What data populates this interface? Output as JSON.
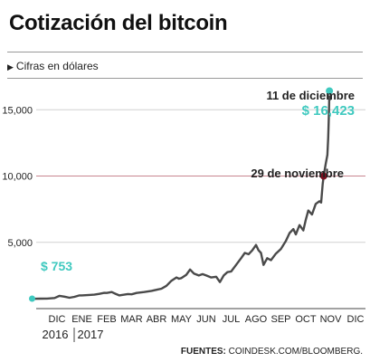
{
  "header": {
    "title": "Cotización del bitcoin",
    "subtitle": "Cifras en dólares",
    "source_label": "FUENTES:",
    "source_text": "COINDESK.COM/BLOOMBERG."
  },
  "colors": {
    "line": "#4a4a4a",
    "accent_teal": "#3fc9bf",
    "marker_red": "#7a1020",
    "ref_line": "#c9868f",
    "grid": "#d0d0d0"
  },
  "chart_data": {
    "type": "line",
    "title": "Cotización del bitcoin",
    "ylabel": "Cifras en dólares",
    "ylim": [
      0,
      17000
    ],
    "yticks": [
      5000,
      10000,
      15000
    ],
    "ytick_labels": [
      "5,000",
      "10,000",
      "15,000"
    ],
    "reference_lines": [
      10000
    ],
    "months": [
      "DIC",
      "ENE",
      "FEB",
      "MAR",
      "ABR",
      "MAY",
      "JUN",
      "JUL",
      "AGO",
      "SEP",
      "OCT",
      "NOV",
      "DIC"
    ],
    "years": [
      "2016",
      "2017"
    ],
    "series": [
      {
        "values": [
          [
            -1.0,
            740
          ],
          [
            -0.7,
            750
          ],
          [
            -0.4,
            760
          ],
          [
            -0.1,
            800
          ],
          [
            0.1,
            960
          ],
          [
            0.3,
            900
          ],
          [
            0.5,
            820
          ],
          [
            0.7,
            890
          ],
          [
            0.9,
            1000
          ],
          [
            1.0,
            1000
          ],
          [
            1.3,
            1030
          ],
          [
            1.5,
            1050
          ],
          [
            1.7,
            1110
          ],
          [
            1.9,
            1190
          ],
          [
            2.0,
            1180
          ],
          [
            2.2,
            1250
          ],
          [
            2.35,
            1120
          ],
          [
            2.5,
            1000
          ],
          [
            2.7,
            1050
          ],
          [
            2.85,
            1100
          ],
          [
            3.0,
            1080
          ],
          [
            3.2,
            1180
          ],
          [
            3.5,
            1250
          ],
          [
            3.8,
            1340
          ],
          [
            4.0,
            1420
          ],
          [
            4.2,
            1500
          ],
          [
            4.4,
            1720
          ],
          [
            4.6,
            2100
          ],
          [
            4.8,
            2350
          ],
          [
            4.9,
            2250
          ],
          [
            5.0,
            2300
          ],
          [
            5.2,
            2550
          ],
          [
            5.35,
            2950
          ],
          [
            5.5,
            2650
          ],
          [
            5.7,
            2500
          ],
          [
            5.85,
            2600
          ],
          [
            6.0,
            2500
          ],
          [
            6.2,
            2350
          ],
          [
            6.4,
            2400
          ],
          [
            6.55,
            2000
          ],
          [
            6.7,
            2500
          ],
          [
            6.85,
            2750
          ],
          [
            7.0,
            2800
          ],
          [
            7.2,
            3300
          ],
          [
            7.4,
            3800
          ],
          [
            7.55,
            4200
          ],
          [
            7.7,
            4100
          ],
          [
            7.85,
            4400
          ],
          [
            8.0,
            4800
          ],
          [
            8.1,
            4400
          ],
          [
            8.2,
            4200
          ],
          [
            8.3,
            3300
          ],
          [
            8.45,
            3800
          ],
          [
            8.6,
            3650
          ],
          [
            8.8,
            4150
          ],
          [
            9.0,
            4500
          ],
          [
            9.2,
            5100
          ],
          [
            9.35,
            5700
          ],
          [
            9.5,
            6000
          ],
          [
            9.6,
            5600
          ],
          [
            9.75,
            6300
          ],
          [
            9.9,
            5900
          ],
          [
            10.0,
            6700
          ],
          [
            10.1,
            7400
          ],
          [
            10.25,
            7100
          ],
          [
            10.4,
            7900
          ],
          [
            10.55,
            8100
          ],
          [
            10.62,
            8000
          ],
          [
            10.68,
            9400
          ],
          [
            10.72,
            10000
          ],
          [
            10.8,
            10900
          ],
          [
            10.87,
            11600
          ],
          [
            10.9,
            12900
          ],
          [
            10.93,
            14700
          ],
          [
            10.95,
            16423
          ],
          [
            10.99,
            15800
          ],
          [
            11.0,
            16250
          ]
        ]
      }
    ],
    "annotations": [
      {
        "label": "$ 753",
        "x": -1.0,
        "y": 753
      },
      {
        "label": "29 de noviembre",
        "x": 10.72,
        "y": 10000
      },
      {
        "label": "11 de diciembre",
        "value_label": "$ 16,423",
        "x": 10.95,
        "y": 16423
      }
    ]
  }
}
